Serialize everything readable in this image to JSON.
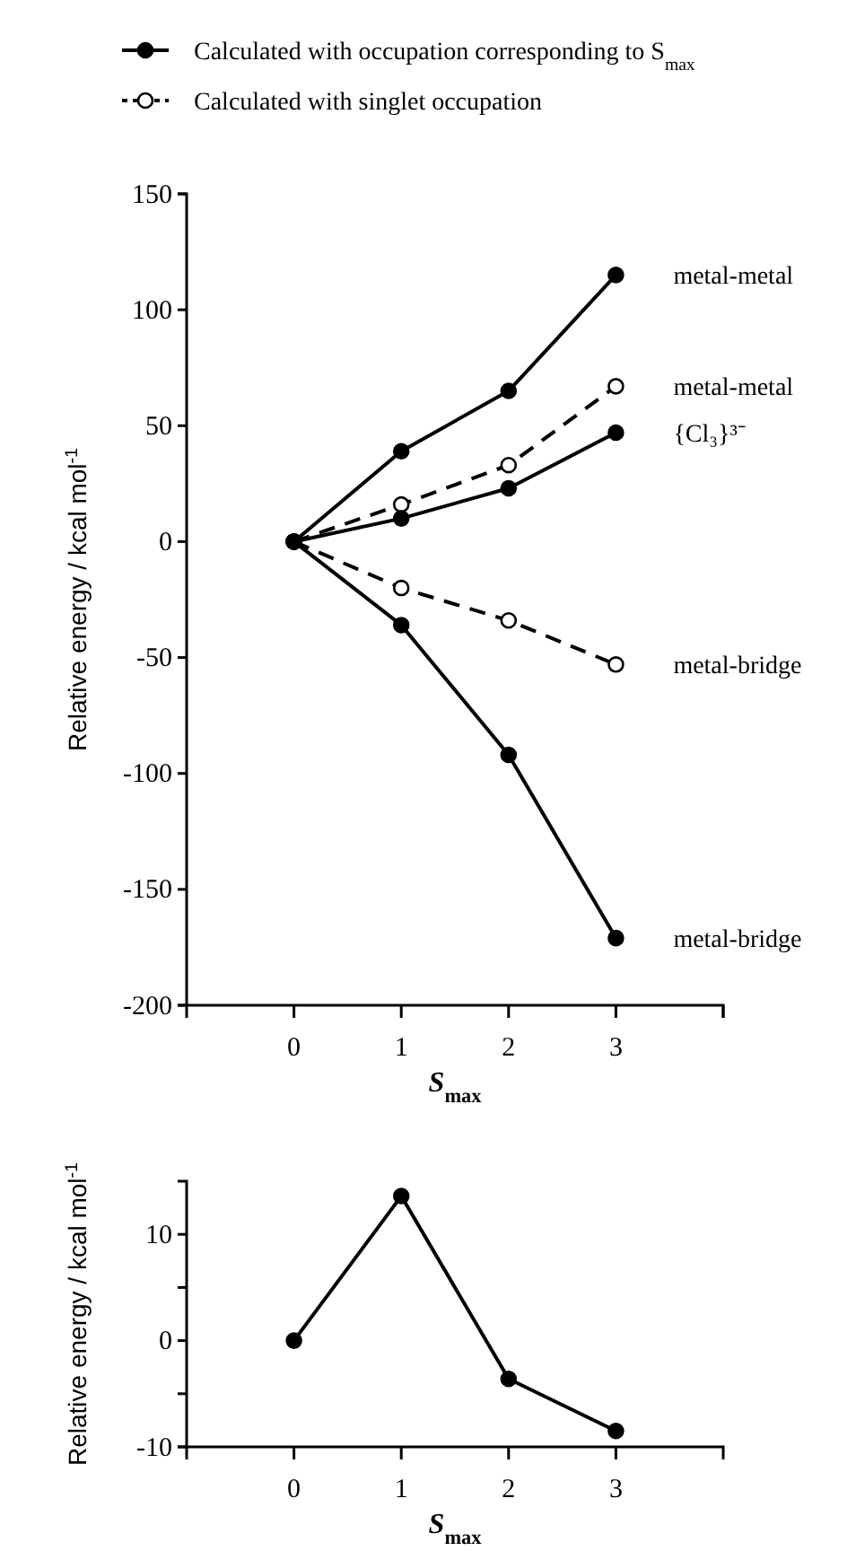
{
  "chart_data": [
    {
      "type": "line",
      "annotations": [
        "Calculated with occupation corresponding to S$_{max}$",
        "Calculated with singlet occupation"
      ],
      "xlabel": "S$_{max}$",
      "ylabel": "Relative energy / kcal mol$^{-1}$",
      "x": [
        0,
        1,
        2,
        3
      ],
      "xlim": [
        -1,
        4
      ],
      "xticks": [
        0,
        1,
        2,
        3,
        {
          "value": 4,
          "label": null
        }
      ],
      "ylim": [
        -200,
        150
      ],
      "yticks": [
        -200,
        -150,
        -100,
        -50,
        0,
        50,
        100,
        150
      ],
      "marker": "circle",
      "series": [
        {
          "name": "metal-metal",
          "color": "#000000",
          "line_style": "solid",
          "values": [
            0,
            39,
            65,
            115
          ]
        },
        {
          "name": "metal-metal",
          "color": "#000000",
          "line_style": "dashed",
          "values": [
            0,
            16,
            33,
            67
          ]
        },
        {
          "name": "{Cl₃}³⁻",
          "color": "#000000",
          "line_style": "solid",
          "values": [
            0,
            10,
            23,
            47
          ]
        },
        {
          "name": "metal-bridge",
          "color": "#000000",
          "line_style": "dashed",
          "values": [
            0,
            -20,
            -34,
            -53
          ]
        },
        {
          "name": "metal-bridge",
          "color": "#000000",
          "line_style": "solid",
          "values": [
            0,
            -36,
            -92,
            -171
          ]
        }
      ]
    },
    {
      "type": "line",
      "xlabel": "S$_{max}$",
      "ylabel": "Relative energy / kcal mol$^{-1}$",
      "x": [
        0,
        1,
        2,
        3
      ],
      "xlim": [
        -1,
        4
      ],
      "xticks": [
        0,
        1,
        2,
        3
      ],
      "ylim": [
        -10,
        15
      ],
      "yticks": [
        -10,
        {
          "value": -5,
          "label": null
        },
        0,
        {
          "value": 5,
          "label": null
        },
        10
      ],
      "marker": "circle",
      "series": [
        {
          "color": "#000000",
          "line_style": "solid",
          "values": [
            0,
            13.6,
            -3.6,
            -8.5
          ]
        }
      ]
    }
  ]
}
